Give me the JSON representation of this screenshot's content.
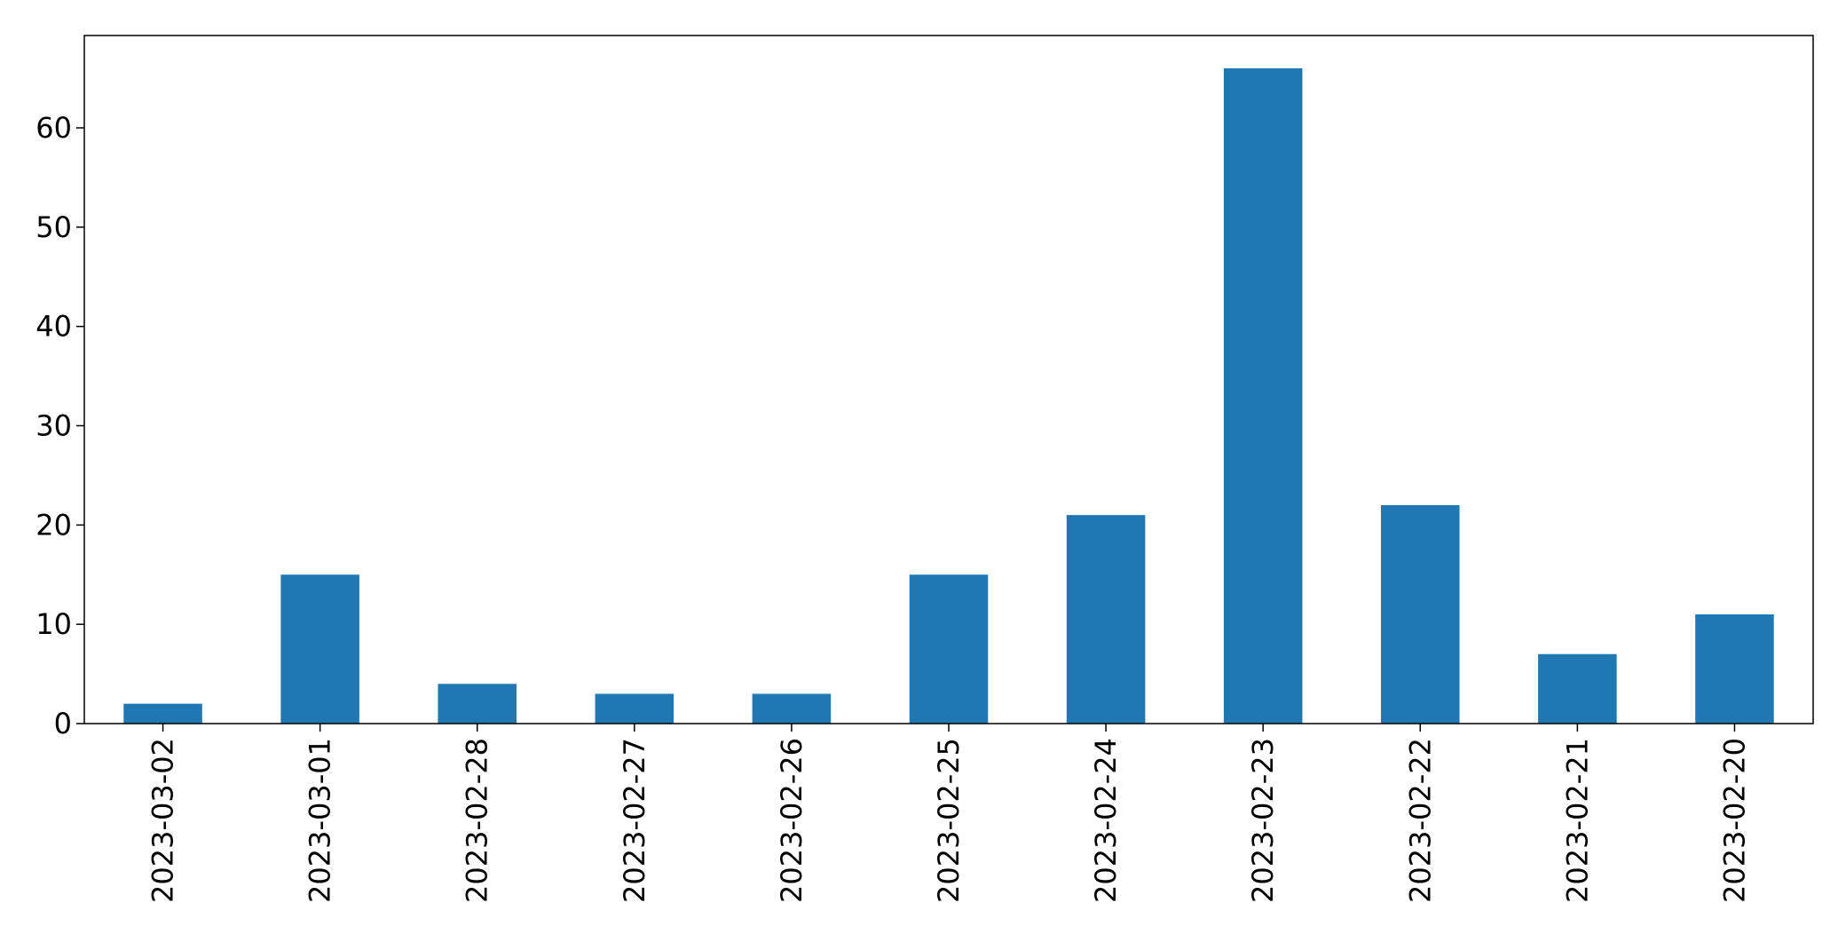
{
  "chart_data": {
    "type": "bar",
    "categories": [
      "2023-03-02",
      "2023-03-01",
      "2023-02-28",
      "2023-02-27",
      "2023-02-26",
      "2023-02-25",
      "2023-02-24",
      "2023-02-23",
      "2023-02-22",
      "2023-02-21",
      "2023-02-20"
    ],
    "values": [
      2,
      15,
      4,
      3,
      3,
      15,
      21,
      66,
      22,
      7,
      11
    ],
    "title": "",
    "xlabel": "",
    "ylabel": "",
    "ylim": [
      0,
      69.3
    ],
    "yticks": [
      0,
      10,
      20,
      30,
      40,
      50,
      60
    ],
    "grid": false,
    "colors": {
      "bar": "#1f77b4",
      "axis": "#000000"
    }
  }
}
